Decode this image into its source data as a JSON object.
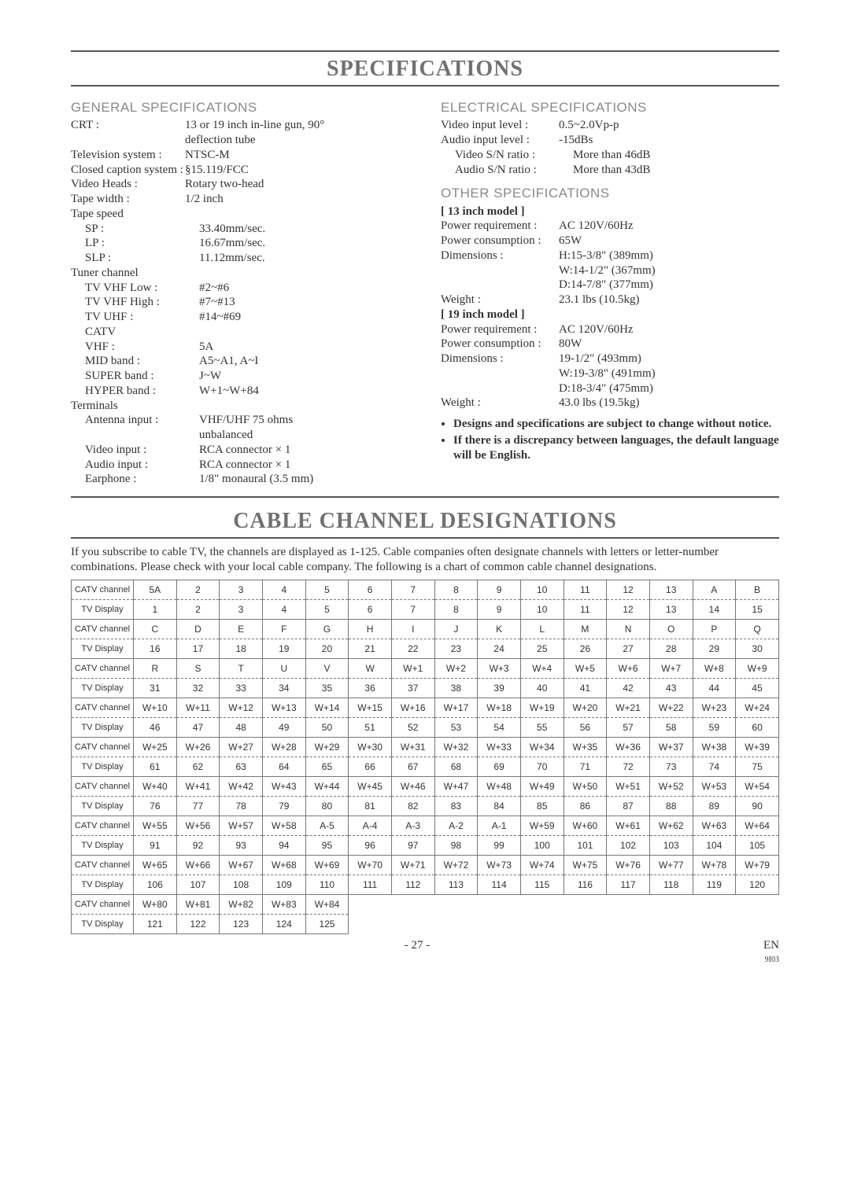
{
  "title_specs": "SPECIFICATIONS",
  "title_cable": "CABLE CHANNEL DESIGNATIONS",
  "sections": {
    "general": "GENERAL SPECIFICATIONS",
    "electrical": "ELECTRICAL SPECIFICATIONS",
    "other": "OTHER SPECIFICATIONS"
  },
  "general_specs": [
    {
      "l": "CRT :",
      "v": "13 or 19 inch in-line gun, 90°"
    },
    {
      "l": "",
      "v": "deflection tube"
    },
    {
      "l": "Television system :",
      "v": "NTSC-M"
    },
    {
      "l": "Closed caption system :",
      "v": "§15.119/FCC"
    },
    {
      "l": "Video Heads :",
      "v": "Rotary two-head"
    },
    {
      "l": "Tape width :",
      "v": "1/2 inch"
    },
    {
      "l": "Tape speed",
      "v": ""
    },
    {
      "l": "SP :",
      "v": "33.40mm/sec.",
      "i": 1
    },
    {
      "l": "LP :",
      "v": "16.67mm/sec.",
      "i": 1
    },
    {
      "l": "SLP :",
      "v": "11.12mm/sec.",
      "i": 1
    },
    {
      "l": "Tuner channel",
      "v": ""
    },
    {
      "l": "TV VHF Low :",
      "v": "#2~#6",
      "i": 1
    },
    {
      "l": "TV VHF High :",
      "v": "#7~#13",
      "i": 1
    },
    {
      "l": "TV UHF :",
      "v": "#14~#69",
      "i": 1
    },
    {
      "l": "CATV",
      "v": "",
      "i": 1
    },
    {
      "l": "VHF :",
      "v": "5A",
      "i": 1
    },
    {
      "l": "MID band :",
      "v": "A5~A1, A~I",
      "i": 1
    },
    {
      "l": "SUPER band :",
      "v": "J~W",
      "i": 1
    },
    {
      "l": "HYPER band :",
      "v": "W+1~W+84",
      "i": 1
    },
    {
      "l": "Terminals",
      "v": ""
    },
    {
      "l": "Antenna input :",
      "v": "VHF/UHF 75 ohms",
      "i": 1
    },
    {
      "l": "",
      "v": "unbalanced",
      "i": 1
    },
    {
      "l": "Video input :",
      "v": "RCA connector × 1",
      "i": 1
    },
    {
      "l": "Audio input :",
      "v": "RCA connector × 1",
      "i": 1
    },
    {
      "l": "Earphone :",
      "v": "1/8\" monaural (3.5 mm)",
      "i": 1
    }
  ],
  "electrical_specs": [
    {
      "l": "Video input level :",
      "v": "0.5~2.0Vp-p"
    },
    {
      "l": "Audio input level :",
      "v": "-15dBs"
    },
    {
      "l": "Video S/N ratio :",
      "v": "More than 46dB",
      "i": 1
    },
    {
      "l": "Audio S/N ratio :",
      "v": "More than 43dB",
      "i": 1
    }
  ],
  "model13_label": "[ 13 inch model ]",
  "model13": [
    {
      "l": "Power requirement :",
      "v": "AC 120V/60Hz"
    },
    {
      "l": "Power consumption :",
      "v": "65W"
    },
    {
      "l": "Dimensions :",
      "v": "H:15-3/8\" (389mm)"
    },
    {
      "l": "",
      "v": "W:14-1/2\" (367mm)"
    },
    {
      "l": "",
      "v": "D:14-7/8\" (377mm)"
    },
    {
      "l": "Weight :",
      "v": "23.1 lbs (10.5kg)"
    }
  ],
  "model19_label": "[ 19 inch model ]",
  "model19": [
    {
      "l": "Power requirement :",
      "v": "AC 120V/60Hz"
    },
    {
      "l": "Power consumption :",
      "v": "80W"
    },
    {
      "l": "Dimensions :",
      "v": "19-1/2\" (493mm)"
    },
    {
      "l": "",
      "v": "W:19-3/8\" (491mm)"
    },
    {
      "l": "",
      "v": "D:18-3/4\" (475mm)"
    },
    {
      "l": "Weight :",
      "v": "43.0 lbs (19.5kg)"
    }
  ],
  "notes": [
    "Designs and specifications are subject to change without notice.",
    "If there is a discrepancy between languages, the default language will be English."
  ],
  "intro": "If you subscribe to cable TV, the channels are displayed as 1-125. Cable companies often designate channels with letters or letter-number combinations. Please check with your local cable company. The following is a chart of common cable channel designations.",
  "table": {
    "row_labels": {
      "catv": "CATV channel",
      "tv": "TV Display"
    },
    "pairs": [
      {
        "catv": [
          "5A",
          "2",
          "3",
          "4",
          "5",
          "6",
          "7",
          "8",
          "9",
          "10",
          "11",
          "12",
          "13",
          "A",
          "B"
        ],
        "tv": [
          "1",
          "2",
          "3",
          "4",
          "5",
          "6",
          "7",
          "8",
          "9",
          "10",
          "11",
          "12",
          "13",
          "14",
          "15"
        ]
      },
      {
        "catv": [
          "C",
          "D",
          "E",
          "F",
          "G",
          "H",
          "I",
          "J",
          "K",
          "L",
          "M",
          "N",
          "O",
          "P",
          "Q"
        ],
        "tv": [
          "16",
          "17",
          "18",
          "19",
          "20",
          "21",
          "22",
          "23",
          "24",
          "25",
          "26",
          "27",
          "28",
          "29",
          "30"
        ]
      },
      {
        "catv": [
          "R",
          "S",
          "T",
          "U",
          "V",
          "W",
          "W+1",
          "W+2",
          "W+3",
          "W+4",
          "W+5",
          "W+6",
          "W+7",
          "W+8",
          "W+9"
        ],
        "tv": [
          "31",
          "32",
          "33",
          "34",
          "35",
          "36",
          "37",
          "38",
          "39",
          "40",
          "41",
          "42",
          "43",
          "44",
          "45"
        ]
      },
      {
        "catv": [
          "W+10",
          "W+11",
          "W+12",
          "W+13",
          "W+14",
          "W+15",
          "W+16",
          "W+17",
          "W+18",
          "W+19",
          "W+20",
          "W+21",
          "W+22",
          "W+23",
          "W+24"
        ],
        "tv": [
          "46",
          "47",
          "48",
          "49",
          "50",
          "51",
          "52",
          "53",
          "54",
          "55",
          "56",
          "57",
          "58",
          "59",
          "60"
        ]
      },
      {
        "catv": [
          "W+25",
          "W+26",
          "W+27",
          "W+28",
          "W+29",
          "W+30",
          "W+31",
          "W+32",
          "W+33",
          "W+34",
          "W+35",
          "W+36",
          "W+37",
          "W+38",
          "W+39"
        ],
        "tv": [
          "61",
          "62",
          "63",
          "64",
          "65",
          "66",
          "67",
          "68",
          "69",
          "70",
          "71",
          "72",
          "73",
          "74",
          "75"
        ]
      },
      {
        "catv": [
          "W+40",
          "W+41",
          "W+42",
          "W+43",
          "W+44",
          "W+45",
          "W+46",
          "W+47",
          "W+48",
          "W+49",
          "W+50",
          "W+51",
          "W+52",
          "W+53",
          "W+54"
        ],
        "tv": [
          "76",
          "77",
          "78",
          "79",
          "80",
          "81",
          "82",
          "83",
          "84",
          "85",
          "86",
          "87",
          "88",
          "89",
          "90"
        ]
      },
      {
        "catv": [
          "W+55",
          "W+56",
          "W+57",
          "W+58",
          "A-5",
          "A-4",
          "A-3",
          "A-2",
          "A-1",
          "W+59",
          "W+60",
          "W+61",
          "W+62",
          "W+63",
          "W+64"
        ],
        "tv": [
          "91",
          "92",
          "93",
          "94",
          "95",
          "96",
          "97",
          "98",
          "99",
          "100",
          "101",
          "102",
          "103",
          "104",
          "105"
        ]
      },
      {
        "catv": [
          "W+65",
          "W+66",
          "W+67",
          "W+68",
          "W+69",
          "W+70",
          "W+71",
          "W+72",
          "W+73",
          "W+74",
          "W+75",
          "W+76",
          "W+77",
          "W+78",
          "W+79"
        ],
        "tv": [
          "106",
          "107",
          "108",
          "109",
          "110",
          "111",
          "112",
          "113",
          "114",
          "115",
          "116",
          "117",
          "118",
          "119",
          "120"
        ]
      },
      {
        "catv": [
          "W+80",
          "W+81",
          "W+82",
          "W+83",
          "W+84",
          "",
          "",
          "",
          "",
          "",
          "",
          "",
          "",
          "",
          ""
        ],
        "tv": [
          "121",
          "122",
          "123",
          "124",
          "125",
          "",
          "",
          "",
          "",
          "",
          "",
          "",
          "",
          "",
          ""
        ]
      }
    ]
  },
  "footer": {
    "page": "- 27 -",
    "lang": "EN",
    "code": "9I03"
  },
  "spec_layout": {
    "label_width_general": "145px",
    "label_width_right": "150px"
  }
}
